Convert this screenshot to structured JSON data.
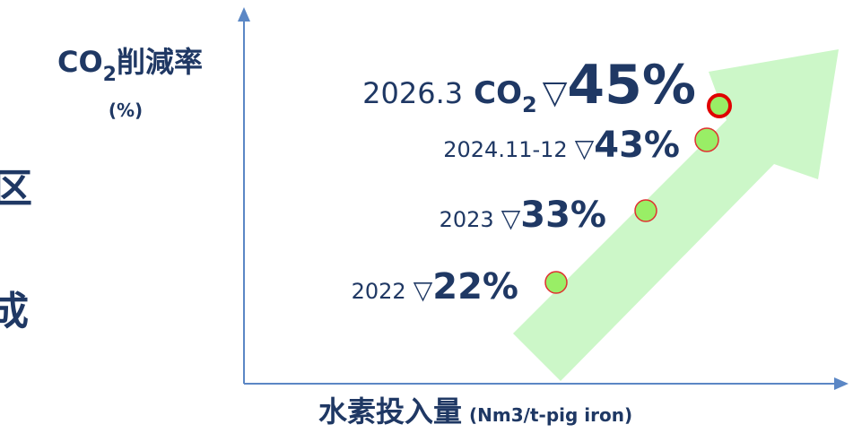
{
  "y_axis_label": {
    "main": "CO",
    "sub": "2",
    "rest": "削減率",
    "unit": "(%)"
  },
  "x_axis_label": {
    "main": "水素投入量",
    "unit": "(Nm3/t-pig iron)"
  },
  "side_text": [
    "区",
    "成"
  ],
  "milestones": [
    {
      "period": "2022",
      "symbol": "▽",
      "value": "22%"
    },
    {
      "period": "2023",
      "symbol": "▽",
      "value": "33%"
    },
    {
      "period": "2024.11-12",
      "symbol": "▽",
      "value": "43%"
    },
    {
      "period": "2026.3",
      "gas": "CO",
      "gas_sub": "2",
      "symbol": "▽",
      "value": "45%"
    }
  ]
}
